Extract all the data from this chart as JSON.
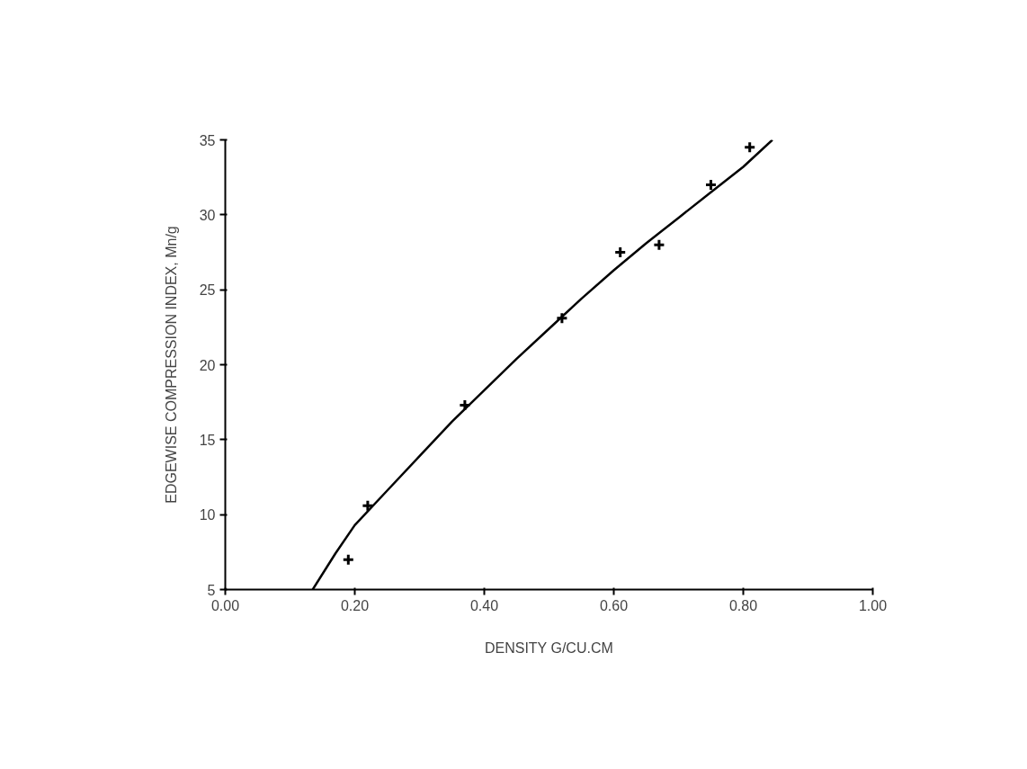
{
  "chart_data": {
    "type": "scatter",
    "xlabel": "DENSITY G/CU.CM",
    "ylabel": "EDGEWISE COMPRESSION INDEX, Mn/g",
    "xlim": [
      0,
      1
    ],
    "ylim": [
      5,
      35
    ],
    "xticks": [
      {
        "value": 0,
        "label": "0.00"
      },
      {
        "value": 0.2,
        "label": "0.20"
      },
      {
        "value": 0.4,
        "label": "0.40"
      },
      {
        "value": 0.6,
        "label": "0.60"
      },
      {
        "value": 0.8,
        "label": "0.80"
      },
      {
        "value": 1,
        "label": "1.00"
      }
    ],
    "yticks": [
      5,
      10,
      15,
      20,
      25,
      30,
      35
    ],
    "grid": false,
    "marker": "cross",
    "series": [
      {
        "color": "#000000",
        "x": [
          0.19,
          0.22,
          0.37,
          0.52,
          0.61,
          0.67,
          0.75,
          0.81
        ],
        "values": [
          7,
          10.6,
          17.3,
          23.1,
          27.5,
          28,
          32,
          34.5
        ]
      },
      {
        "type": "line",
        "color": "#000000",
        "marker": "none",
        "line_style": "solid",
        "x": [
          0.135,
          0.17,
          0.2,
          0.25,
          0.3,
          0.35,
          0.4,
          0.45,
          0.5,
          0.55,
          0.6,
          0.65,
          0.7,
          0.75,
          0.8,
          0.845
        ],
        "values": [
          5,
          7.4,
          9.3,
          11.6,
          13.9,
          16.2,
          18.3,
          20.4,
          22.4,
          24.4,
          26.3,
          28.1,
          29.8,
          31.5,
          33.2,
          35
        ]
      }
    ]
  }
}
